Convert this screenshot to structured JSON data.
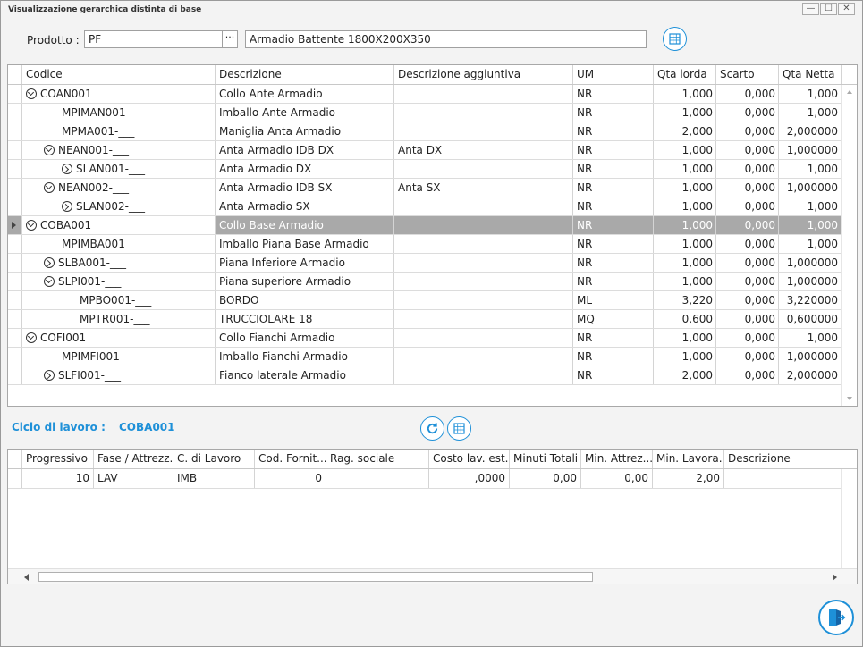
{
  "window": {
    "title": "Visualizzazione gerarchica distinta di base",
    "controls": [
      "—",
      "☐",
      "✕"
    ]
  },
  "prodotto": {
    "label": "Prodotto :",
    "code": "PF",
    "dots": "···",
    "description": "Armadio Battente 1800X200X350"
  },
  "bom_grid": {
    "columns": [
      "Codice",
      "Descrizione",
      "Descrizione aggiuntiva",
      "UM",
      "Qta lorda",
      "Scarto",
      "Qta Netta"
    ],
    "rows": [
      {
        "codice": "COAN001",
        "descrizione": "Collo Ante Armadio",
        "agg": "",
        "um": "NR",
        "lorda": "1,000",
        "scarto": "0,000",
        "netta": "1,000"
      },
      {
        "codice": "MPIMAN001",
        "descrizione": "Imballo Ante Armadio",
        "agg": "",
        "um": "NR",
        "lorda": "1,000",
        "scarto": "0,000",
        "netta": "1,000"
      },
      {
        "codice": "MPMA001-___",
        "descrizione": "Maniglia Anta Armadio",
        "agg": "",
        "um": "NR",
        "lorda": "2,000",
        "scarto": "0,000",
        "netta": "2,000000"
      },
      {
        "codice": "NEAN001-___",
        "descrizione": "Anta Armadio IDB DX",
        "agg": "Anta DX",
        "um": "NR",
        "lorda": "1,000",
        "scarto": "0,000",
        "netta": "1,000000"
      },
      {
        "codice": "SLAN001-___",
        "descrizione": "Anta Armadio DX",
        "agg": "",
        "um": "NR",
        "lorda": "1,000",
        "scarto": "0,000",
        "netta": "1,000"
      },
      {
        "codice": "NEAN002-___",
        "descrizione": "Anta Armadio IDB SX",
        "agg": "Anta SX",
        "um": "NR",
        "lorda": "1,000",
        "scarto": "0,000",
        "netta": "1,000000"
      },
      {
        "codice": "SLAN002-___",
        "descrizione": "Anta Armadio SX",
        "agg": "",
        "um": "NR",
        "lorda": "1,000",
        "scarto": "0,000",
        "netta": "1,000"
      },
      {
        "codice": "COBA001",
        "descrizione": "Collo Base Armadio",
        "agg": "",
        "um": "NR",
        "lorda": "1,000",
        "scarto": "0,000",
        "netta": "1,000"
      },
      {
        "codice": "MPIMBA001",
        "descrizione": "Imballo Piana Base Armadio",
        "agg": "",
        "um": "NR",
        "lorda": "1,000",
        "scarto": "0,000",
        "netta": "1,000"
      },
      {
        "codice": "SLBA001-___",
        "descrizione": "Piana Inferiore Armadio",
        "agg": "",
        "um": "NR",
        "lorda": "1,000",
        "scarto": "0,000",
        "netta": "1,000000"
      },
      {
        "codice": "SLPI001-___",
        "descrizione": "Piana superiore Armadio",
        "agg": "",
        "um": "NR",
        "lorda": "1,000",
        "scarto": "0,000",
        "netta": "1,000000"
      },
      {
        "codice": "MPBO001-___",
        "descrizione": "BORDO",
        "agg": "",
        "um": "ML",
        "lorda": "3,220",
        "scarto": "0,000",
        "netta": "3,220000"
      },
      {
        "codice": "MPTR001-___",
        "descrizione": "TRUCCIOLARE 18",
        "agg": "",
        "um": "MQ",
        "lorda": "0,600",
        "scarto": "0,000",
        "netta": "0,600000"
      },
      {
        "codice": "COFI001",
        "descrizione": "Collo Fianchi Armadio",
        "agg": "",
        "um": "NR",
        "lorda": "1,000",
        "scarto": "0,000",
        "netta": "1,000"
      },
      {
        "codice": "MPIMFI001",
        "descrizione": "Imballo Fianchi Armadio",
        "agg": "",
        "um": "NR",
        "lorda": "1,000",
        "scarto": "0,000",
        "netta": "1,000000"
      },
      {
        "codice": "SLFI001-___",
        "descrizione": "Fianco laterale Armadio",
        "agg": "",
        "um": "NR",
        "lorda": "2,000",
        "scarto": "0,000",
        "netta": "2,000000"
      }
    ]
  },
  "ciclo": {
    "label": "Ciclo di lavoro :",
    "code": "COBA001"
  },
  "cycle_grid": {
    "columns": [
      "Progressivo",
      "Fase / Attrezz...",
      "C. di Lavoro",
      "Cod. Fornit...",
      "Rag. sociale",
      "Costo lav. est.",
      "Minuti Totali",
      "Min. Attrez...",
      "Min. Lavora...",
      "Descrizione"
    ],
    "row": {
      "progressivo": "10",
      "fase": "LAV",
      "centro": "IMB",
      "fornitore": "0",
      "rag": "",
      "costo": ",0000",
      "min_tot": "0,00",
      "min_attr": "0,00",
      "min_lav": "2,00",
      "descr": ""
    }
  },
  "colors": {
    "accent": "#1e90d8",
    "selected_row": "#a9a9a9"
  }
}
